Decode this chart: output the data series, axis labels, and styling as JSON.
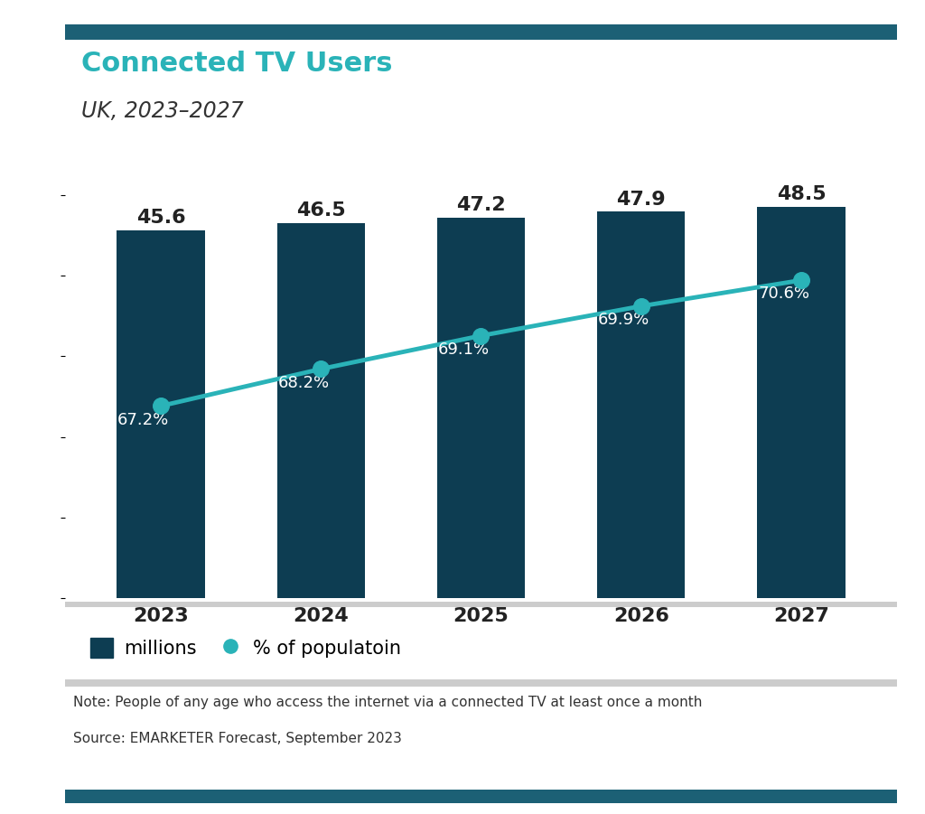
{
  "title": "Connected TV Users",
  "subtitle": "UK, 2023–2027",
  "years": [
    2023,
    2024,
    2025,
    2026,
    2027
  ],
  "millions": [
    45.6,
    46.5,
    47.2,
    47.9,
    48.5
  ],
  "pct_population": [
    67.2,
    68.2,
    69.1,
    69.9,
    70.6
  ],
  "bar_color": "#0d3d52",
  "line_color": "#2ab3b8",
  "title_color": "#2ab3b8",
  "subtitle_color": "#333333",
  "background_color": "#ffffff",
  "note_line1": "Note: People of any age who access the internet via a connected TV at least once a month",
  "note_line2": "Source: EMARKETER Forecast, September 2023",
  "legend_bar_label": "millions",
  "legend_line_label": "% of populatoin",
  "accent_color": "#1c6075",
  "separator_color": "#cccccc",
  "ylim": [
    0,
    55
  ],
  "line_ylim": [
    62,
    74
  ]
}
